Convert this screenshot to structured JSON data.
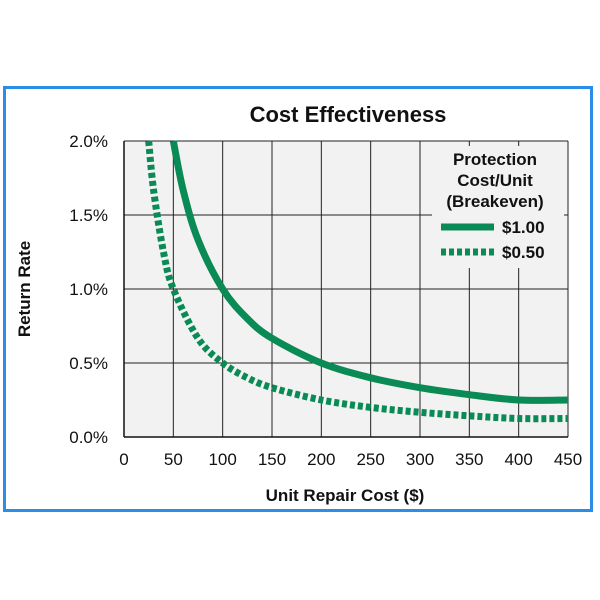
{
  "chart_data": {
    "type": "line",
    "title": "Cost Effectiveness",
    "xlabel": "Unit Repair Cost ($)",
    "ylabel": "Return Rate",
    "xlim": [
      0,
      450
    ],
    "ylim": [
      0,
      2.0
    ],
    "x_ticks": [
      0,
      50,
      100,
      150,
      200,
      250,
      300,
      350,
      400,
      450
    ],
    "x_tick_labels": [
      "0",
      "50",
      "100",
      "150",
      "200",
      "250",
      "300",
      "350",
      "400",
      "450"
    ],
    "y_ticks": [
      0,
      0.5,
      1.0,
      1.5,
      2.0
    ],
    "y_tick_labels": [
      "0.0%",
      "0.5%",
      "1.0%",
      "1.5%",
      "2.0%"
    ],
    "grid": true,
    "legend": {
      "title_lines": [
        "Protection",
        "Cost/Unit",
        "(Breakeven)"
      ],
      "placement": "top-right"
    },
    "series": [
      {
        "name": "$1.00",
        "style": "solid",
        "color": "#0a8a55",
        "x": [
          50,
          60,
          75,
          100,
          125,
          150,
          200,
          250,
          300,
          350,
          400,
          450
        ],
        "y": [
          2.0,
          1.667,
          1.333,
          1.0,
          0.8,
          0.667,
          0.5,
          0.4,
          0.333,
          0.286,
          0.25,
          0.25
        ]
      },
      {
        "name": "$0.50",
        "style": "dotted",
        "color": "#0a8a55",
        "x": [
          25,
          30,
          40,
          50,
          75,
          100,
          125,
          150,
          200,
          250,
          300,
          350,
          400,
          450
        ],
        "y": [
          2.0,
          1.667,
          1.25,
          1.0,
          0.667,
          0.5,
          0.4,
          0.333,
          0.25,
          0.2,
          0.167,
          0.143,
          0.125,
          0.125
        ]
      }
    ]
  }
}
